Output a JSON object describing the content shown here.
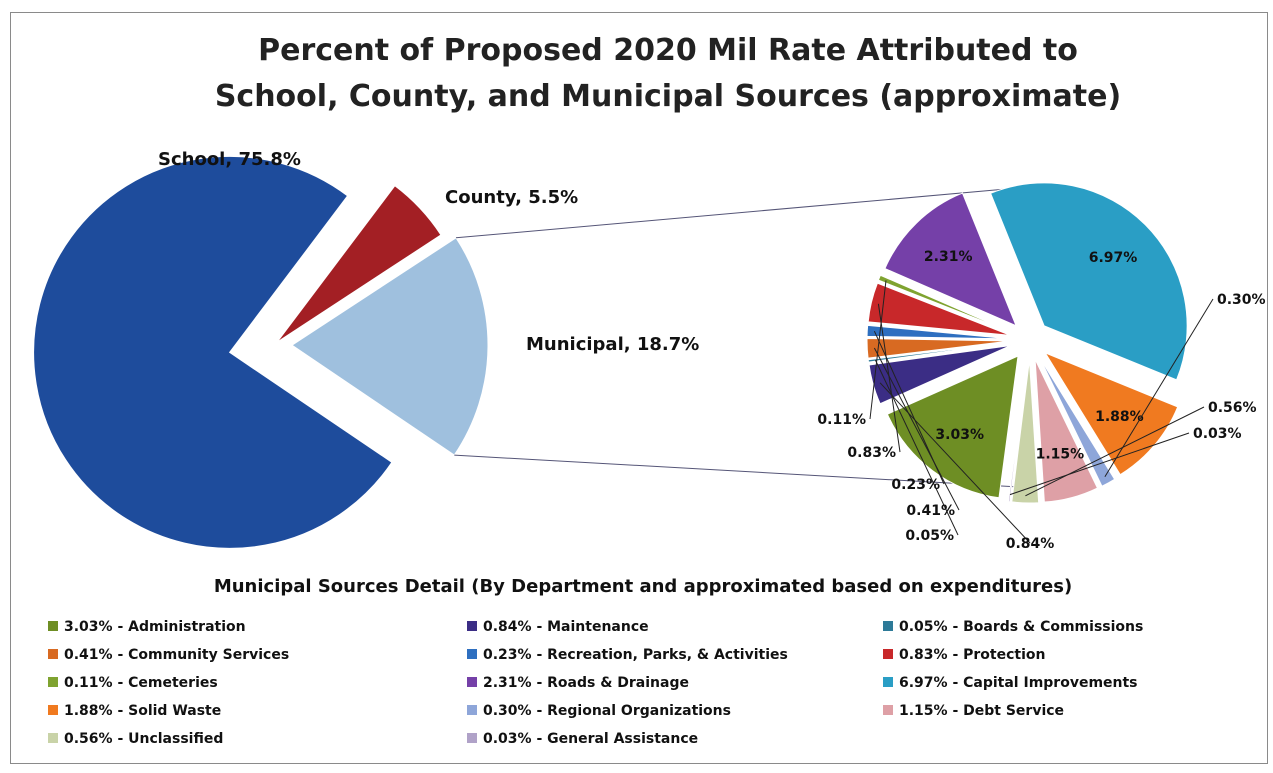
{
  "title_line1": "Percent of Proposed 2020 Mil Rate Attributed to",
  "title_line2": "School, County, and Municipal Sources (approximate)",
  "main_labels": {
    "school": "School, 75.8%",
    "county": "County, 5.5%",
    "municipal": "Municipal, 18.7%"
  },
  "detail_title": "Municipal Sources Detail (By Department and approximated based on expenditures)",
  "chart_data": [
    {
      "type": "pie",
      "title": "Percent of Proposed 2020 Mil Rate Attributed to School, County, and Municipal Sources (approximate)",
      "slices": [
        {
          "name": "School",
          "value": 75.8,
          "label": "School, 75.8%",
          "color": "#1e4c9c"
        },
        {
          "name": "County",
          "value": 5.5,
          "label": "County, 5.5%",
          "color": "#a31f24"
        },
        {
          "name": "Municipal",
          "value": 18.7,
          "label": "Municipal, 18.7%",
          "color": "#9fc0de"
        }
      ]
    },
    {
      "type": "pie",
      "title": "Municipal Sources Detail (By Department and approximated based on expenditures)",
      "slices": [
        {
          "name": "Capital Improvements",
          "value": 6.97,
          "label": "6.97%",
          "legend": "6.97% - Capital Improvements",
          "color": "#2a9ec5"
        },
        {
          "name": "Solid Waste",
          "value": 1.88,
          "label": "1.88%",
          "legend": "1.88% - Solid Waste",
          "color": "#f07a20"
        },
        {
          "name": "Regional Organizations",
          "value": 0.3,
          "label": "0.30%",
          "legend": "0.30% - Regional Organizations",
          "color": "#8ea6d9"
        },
        {
          "name": "Debt Service",
          "value": 1.15,
          "label": "1.15%",
          "legend": "1.15% - Debt Service",
          "color": "#dea0a6"
        },
        {
          "name": "Unclassified",
          "value": 0.56,
          "label": "0.56%",
          "legend": "0.56% - Unclassified",
          "color": "#c9d3a8"
        },
        {
          "name": "General Assistance",
          "value": 0.03,
          "label": "0.03%",
          "legend": "0.03% - General Assistance",
          "color": "#b0a2c8"
        },
        {
          "name": "Administration",
          "value": 3.03,
          "label": "3.03%",
          "legend": "3.03% - Administration",
          "color": "#6e8e24"
        },
        {
          "name": "Maintenance",
          "value": 0.84,
          "label": "0.84%",
          "legend": "0.84% - Maintenance",
          "color": "#3b2d85"
        },
        {
          "name": "Boards & Commissions",
          "value": 0.05,
          "label": "0.05%",
          "legend": "0.05% - Boards & Commissions",
          "color": "#2d7a98"
        },
        {
          "name": "Community Services",
          "value": 0.41,
          "label": "0.41%",
          "legend": "0.41% - Community Services",
          "color": "#d86a22"
        },
        {
          "name": "Recreation, Parks, & Activities",
          "value": 0.23,
          "label": "0.23%",
          "legend": "0.23% - Recreation, Parks, & Activities",
          "color": "#2e6fc0"
        },
        {
          "name": "Protection",
          "value": 0.83,
          "label": "0.83%",
          "legend": "0.83% - Protection",
          "color": "#c8282a"
        },
        {
          "name": "Cemeteries",
          "value": 0.11,
          "label": "0.11%",
          "legend": "0.11% - Cemeteries",
          "color": "#7fa330"
        },
        {
          "name": "Roads & Drainage",
          "value": 2.31,
          "label": "2.31%",
          "legend": "2.31% - Roads & Drainage",
          "color": "#7540a8"
        }
      ],
      "legend_order": [
        "Administration",
        "Maintenance",
        "Boards & Commissions",
        "Community Services",
        "Recreation, Parks, & Activities",
        "Protection",
        "Cemeteries",
        "Roads & Drainage",
        "Capital Improvements",
        "Solid Waste",
        "Regional Organizations",
        "Debt Service",
        "Unclassified",
        "General Assistance"
      ]
    }
  ]
}
